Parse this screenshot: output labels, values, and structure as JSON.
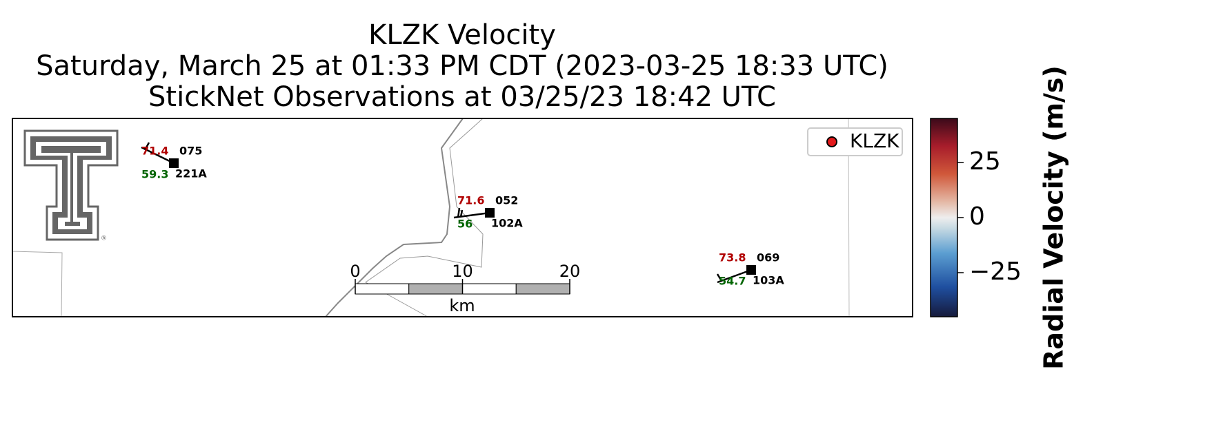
{
  "title": {
    "lines": [
      "KLZK Velocity",
      "Saturday, March 25 at 01:33 PM CDT (2023-03-25 18:33 UTC)",
      "StickNet Observations at 03/25/23 18:42 UTC"
    ]
  },
  "stations": [
    {
      "id": "221A",
      "temperature": 71.4,
      "dewpoint": 59.3,
      "direction": "075"
    },
    {
      "id": "102A",
      "temperature": 71.6,
      "dewpoint": 56.0,
      "direction": "052"
    },
    {
      "id": "103A",
      "temperature": 73.8,
      "dewpoint": 54.7,
      "direction": "069"
    }
  ],
  "legend": {
    "label": "KLZK",
    "color": "#e31a1c"
  },
  "scale_bar": {
    "unit": "km",
    "lim": [
      0,
      20
    ],
    "ticks": [
      0,
      10,
      20
    ]
  },
  "colorbar": {
    "label": "Radial Velocity (m/s)",
    "lim": [
      -45,
      45
    ],
    "ticks": [
      25,
      0,
      {
        "value": -25,
        "label": "−25"
      }
    ]
  }
}
